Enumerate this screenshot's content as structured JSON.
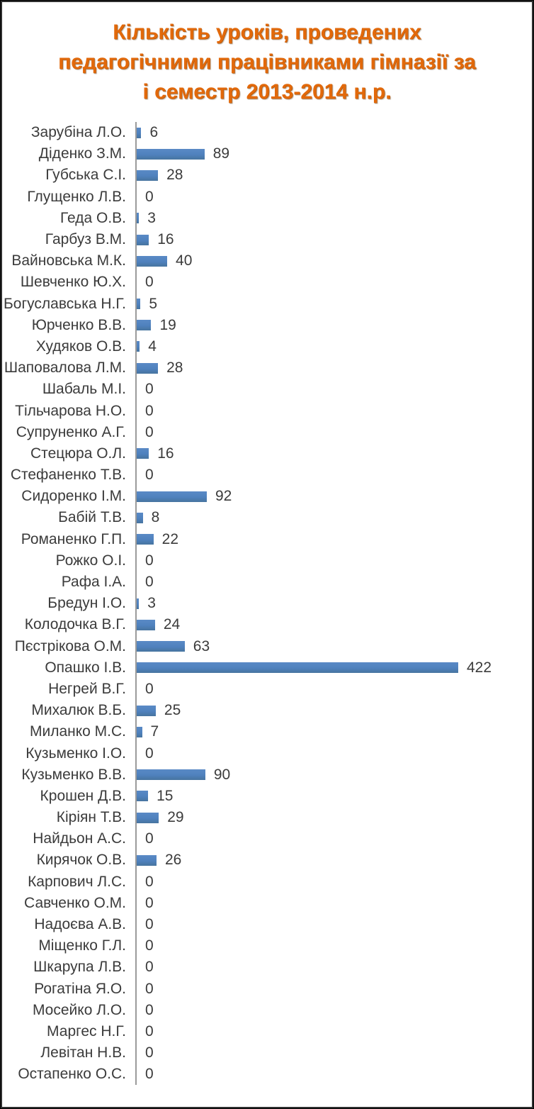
{
  "chart_data": {
    "type": "bar",
    "orientation": "horizontal",
    "title": "Кількість уроків, проведених педагогічними працівниками гімназії за і семестр 2013-2014 н.р.",
    "title_lines": [
      "Кількість уроків, проведених",
      "педагогічними працівниками гімназії за",
      "і семестр 2013-2014 н.р."
    ],
    "categories": [
      "Зарубіна Л.О.",
      "Діденко З.М.",
      "Губська С.І.",
      "Глущенко Л.В.",
      "Геда О.В.",
      "Гарбуз В.М.",
      "Вайновська М.К.",
      "Шевченко Ю.Х.",
      "Богуславська Н.Г.",
      "Юрченко В.В.",
      "Худяков О.В.",
      "Шаповалова Л.М.",
      "Шабаль М.І.",
      "Тільчарова Н.О.",
      "Супруненко А.Г.",
      "Стецюра О.Л.",
      "Стефаненко Т.В.",
      "Сидоренко І.М.",
      "Бабій Т.В.",
      "Романенко Г.П.",
      "Рожко О.І.",
      "Рафа І.А.",
      "Бредун І.О.",
      "Колодочка В.Г.",
      "Пєстрікова О.М.",
      "Опашко І.В.",
      "Негрей В.Г.",
      "Михалюк В.Б.",
      "Миланко М.С.",
      "Кузьменко І.О.",
      "Кузьменко В.В.",
      "Крошен Д.В.",
      "Кіріян Т.В.",
      "Найдьон А.С.",
      "Кирячок О.В.",
      "Карпович Л.С.",
      "Савченко О.М.",
      "Надоєва А.В.",
      "Міщенко Г.Л.",
      "Шкарупа Л.В.",
      "Рогатіна Я.О.",
      "Мосейко Л.О.",
      "Маргес Н.Г.",
      "Левітан Н.В.",
      "Остапенко О.С."
    ],
    "values": [
      6,
      89,
      28,
      0,
      3,
      16,
      40,
      0,
      5,
      19,
      4,
      28,
      0,
      0,
      0,
      16,
      0,
      92,
      8,
      22,
      0,
      0,
      3,
      24,
      63,
      422,
      0,
      25,
      7,
      0,
      90,
      15,
      29,
      0,
      26,
      0,
      0,
      0,
      0,
      0,
      0,
      0,
      0,
      0,
      0
    ],
    "data_labels": true,
    "xlim": [
      0,
      422
    ],
    "grid": false,
    "legend": "none",
    "colors": {
      "bar": "#4F81BD",
      "title": "#E2690B",
      "text": "#3B3B3B",
      "axis_line": "#9B9B9B",
      "frame": "#2F2F2F"
    }
  }
}
